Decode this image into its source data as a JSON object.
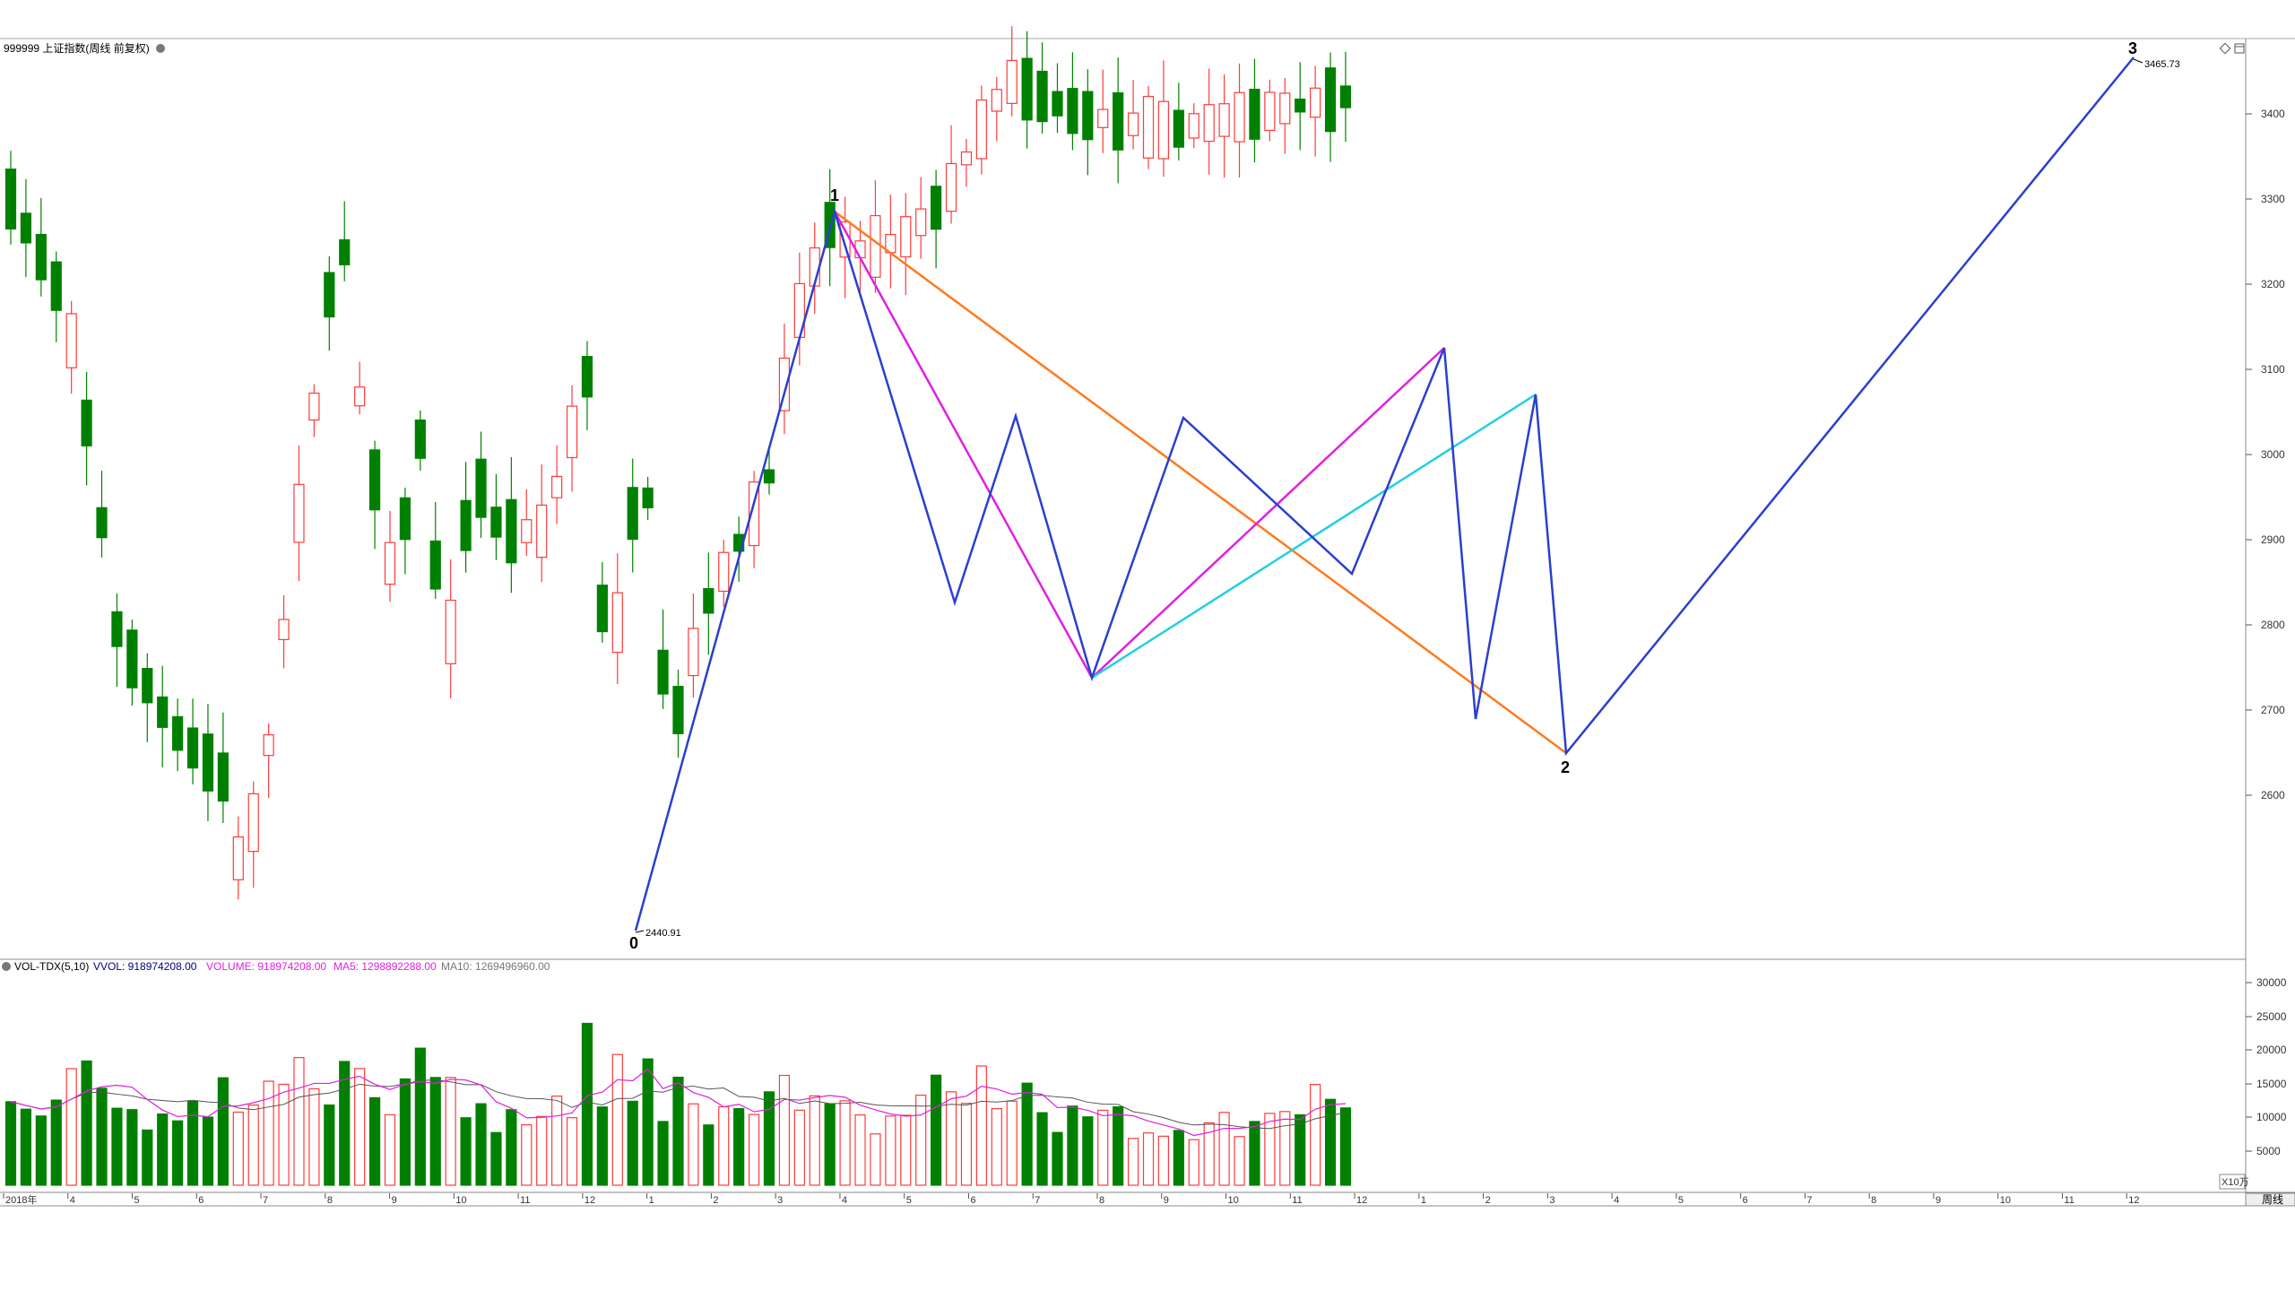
{
  "header": {
    "title": "999999 上证指数(周线 前复权)",
    "restore_icon": "restore-icon",
    "maximize_icon": "maximize-icon"
  },
  "price_axis": {
    "labels": [
      "3400",
      "3300",
      "3200",
      "3100",
      "3000",
      "2900",
      "2800",
      "2700",
      "2600"
    ]
  },
  "volume_panel": {
    "indicator": "VOL-TDX(5,10)",
    "vvol": "VVOL: 918974208.00",
    "volume": "VOLUME: 918974208.00",
    "ma5": "MA5: 1298892288.00",
    "ma10": "MA10: 1269496960.00",
    "axis_labels": [
      "30000",
      "25000",
      "20000",
      "15000",
      "10000",
      "5000"
    ],
    "unit": "X10万"
  },
  "time_axis": {
    "labels": [
      "2018年",
      "4",
      "5",
      "6",
      "7",
      "8",
      "9",
      "10",
      "11",
      "12",
      "1",
      "2",
      "3",
      "4",
      "5",
      "6",
      "7",
      "8",
      "9",
      "10",
      "11",
      "12",
      "1",
      "2",
      "3",
      "4",
      "5",
      "6",
      "7",
      "8",
      "9",
      "10",
      "11",
      "12"
    ],
    "period_button": "周线"
  },
  "annotations": {
    "point0": "0",
    "point1": "1",
    "point2": "2",
    "point3": "3",
    "low_price": "2440.91",
    "high_price": "3465.73"
  },
  "colors": {
    "up": "#ff3b3b",
    "down": "#008000",
    "wave": "#2b3fcf",
    "magenta": "#e020e0",
    "orange": "#ff7a20",
    "cyan": "#20d0e0",
    "ma5": "#e020e0",
    "ma10": "#555555"
  }
}
